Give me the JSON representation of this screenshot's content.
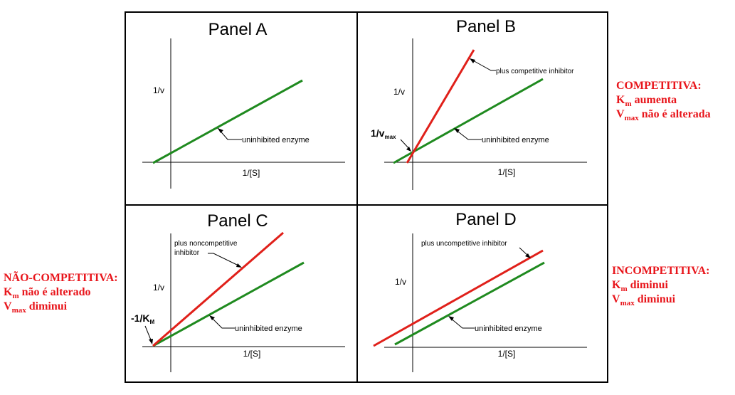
{
  "panels": [
    {
      "title": "Panel A",
      "ylabel": "1/v",
      "xlabel": "1/[S]",
      "uninhibited_label": "uninhibited enzyme"
    },
    {
      "title": "Panel B",
      "ylabel": "1/v",
      "xlabel": "1/[S]",
      "intercept_label": "1/v",
      "intercept_sub": "max",
      "inhibited_label": "plus competitive inhibitor",
      "uninhibited_label": "uninhibited enzyme"
    },
    {
      "title": "Panel C",
      "ylabel": "1/v",
      "xlabel": "1/[S]",
      "intercept_label": "-1/K",
      "intercept_sub": "M",
      "inhibited_label_line1": "plus noncompetitive",
      "inhibited_label_line2": "inhibitor",
      "uninhibited_label": "uninhibited enzyme"
    },
    {
      "title": "Panel D",
      "ylabel": "1/v",
      "xlabel": "1/[S]",
      "inhibited_label": "plus uncompetitive inhibitor",
      "uninhibited_label": "uninhibited enzyme"
    }
  ],
  "notes": {
    "competitive": {
      "title": "COMPETITIVA:",
      "km_sym": "K",
      "km_sub": "m",
      "km_text": " aumenta",
      "vmax_sym": "V",
      "vmax_sub": "max",
      "vmax_text": " não é alterada"
    },
    "noncompetitive": {
      "title": "NÃO-COMPETITIVA:",
      "km_sym": "K",
      "km_sub": "m",
      "km_text": " não é alterado",
      "vmax_sym": "V",
      "vmax_sub": "max",
      "vmax_text": " diminui"
    },
    "uncompetitive": {
      "title": "INCOMPETITIVA:",
      "km_sym": "K",
      "km_sub": "m",
      "km_text": " diminui",
      "vmax_sym": "V",
      "vmax_sub": "max",
      "vmax_text": " diminui"
    }
  },
  "colors": {
    "background": "#000000",
    "panel": "#ffffff",
    "uninhibited": "#1f8a1f",
    "inhibited": "#e0201a",
    "note": "#e8151b"
  }
}
